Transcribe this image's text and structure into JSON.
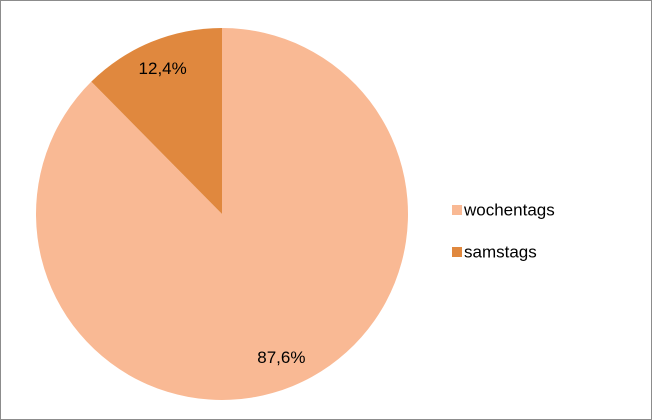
{
  "chart_data": {
    "type": "pie",
    "categories": [
      "wochentags",
      "samstags"
    ],
    "values": [
      87.6,
      12.4
    ],
    "value_labels": [
      "87,6%",
      "12,4%"
    ],
    "colors": [
      "#f9b994",
      "#e0883e"
    ],
    "legend": "right"
  }
}
